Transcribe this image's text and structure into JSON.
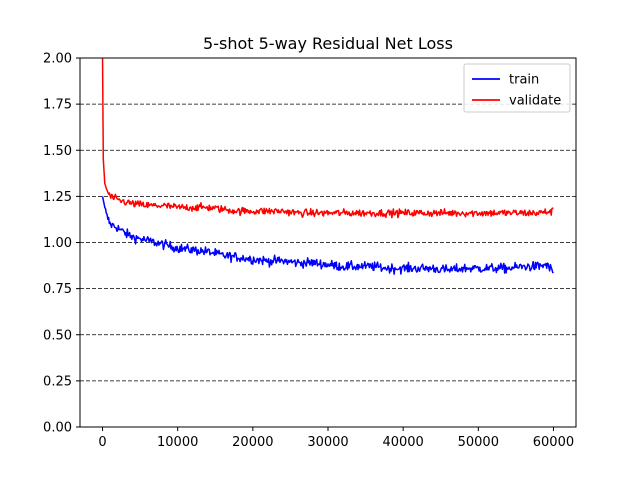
{
  "chart_data": {
    "type": "line",
    "title": "5-shot 5-way Residual Net Loss",
    "xlabel": "",
    "ylabel": "",
    "xlim": [
      -3000,
      63000
    ],
    "ylim": [
      0,
      2.0
    ],
    "xticks": [
      0,
      10000,
      20000,
      30000,
      40000,
      50000,
      60000
    ],
    "yticks": [
      0.0,
      0.25,
      0.5,
      0.75,
      1.0,
      1.25,
      1.5,
      1.75,
      2.0
    ],
    "xtick_labels": [
      "0",
      "10000",
      "20000",
      "30000",
      "40000",
      "50000",
      "60000"
    ],
    "ytick_labels": [
      "0.00",
      "0.25",
      "0.50",
      "0.75",
      "1.00",
      "1.25",
      "1.50",
      "1.75",
      "2.00"
    ],
    "grid": "horizontal-dashed",
    "legend": {
      "placement": "top-right",
      "entries": [
        "train",
        "validate"
      ]
    },
    "series": [
      {
        "name": "train",
        "color": "#0000ff",
        "x": [
          0,
          500,
          1000,
          2000,
          3000,
          4000,
          5000,
          6000,
          8000,
          10000,
          12000,
          14000,
          16000,
          18000,
          20000,
          22000,
          24000,
          26000,
          28000,
          30000,
          32000,
          34000,
          36000,
          38000,
          40000,
          42000,
          44000,
          46000,
          48000,
          50000,
          52000,
          54000,
          56000,
          58000,
          59000,
          60000
        ],
        "y": [
          1.25,
          1.15,
          1.1,
          1.08,
          1.05,
          1.03,
          1.02,
          1.01,
          0.99,
          0.97,
          0.96,
          0.95,
          0.93,
          0.92,
          0.91,
          0.9,
          0.9,
          0.89,
          0.89,
          0.88,
          0.87,
          0.87,
          0.87,
          0.86,
          0.86,
          0.86,
          0.86,
          0.85,
          0.86,
          0.86,
          0.86,
          0.86,
          0.87,
          0.87,
          0.88,
          0.84
        ],
        "noise": 0.025
      },
      {
        "name": "validate",
        "color": "#ff0000",
        "x": [
          0,
          100,
          300,
          600,
          1000,
          2000,
          3000,
          4000,
          6000,
          8000,
          10000,
          12000,
          14000,
          16000,
          18000,
          20000,
          22000,
          24000,
          26000,
          28000,
          30000,
          32000,
          34000,
          36000,
          38000,
          40000,
          42000,
          44000,
          46000,
          48000,
          50000,
          52000,
          54000,
          56000,
          58000,
          60000
        ],
        "y": [
          2.0,
          1.45,
          1.32,
          1.28,
          1.25,
          1.23,
          1.22,
          1.21,
          1.2,
          1.2,
          1.19,
          1.19,
          1.19,
          1.18,
          1.17,
          1.17,
          1.17,
          1.17,
          1.16,
          1.16,
          1.16,
          1.16,
          1.16,
          1.16,
          1.16,
          1.16,
          1.16,
          1.16,
          1.16,
          1.16,
          1.16,
          1.16,
          1.16,
          1.16,
          1.16,
          1.17
        ],
        "noise": 0.02
      }
    ]
  }
}
